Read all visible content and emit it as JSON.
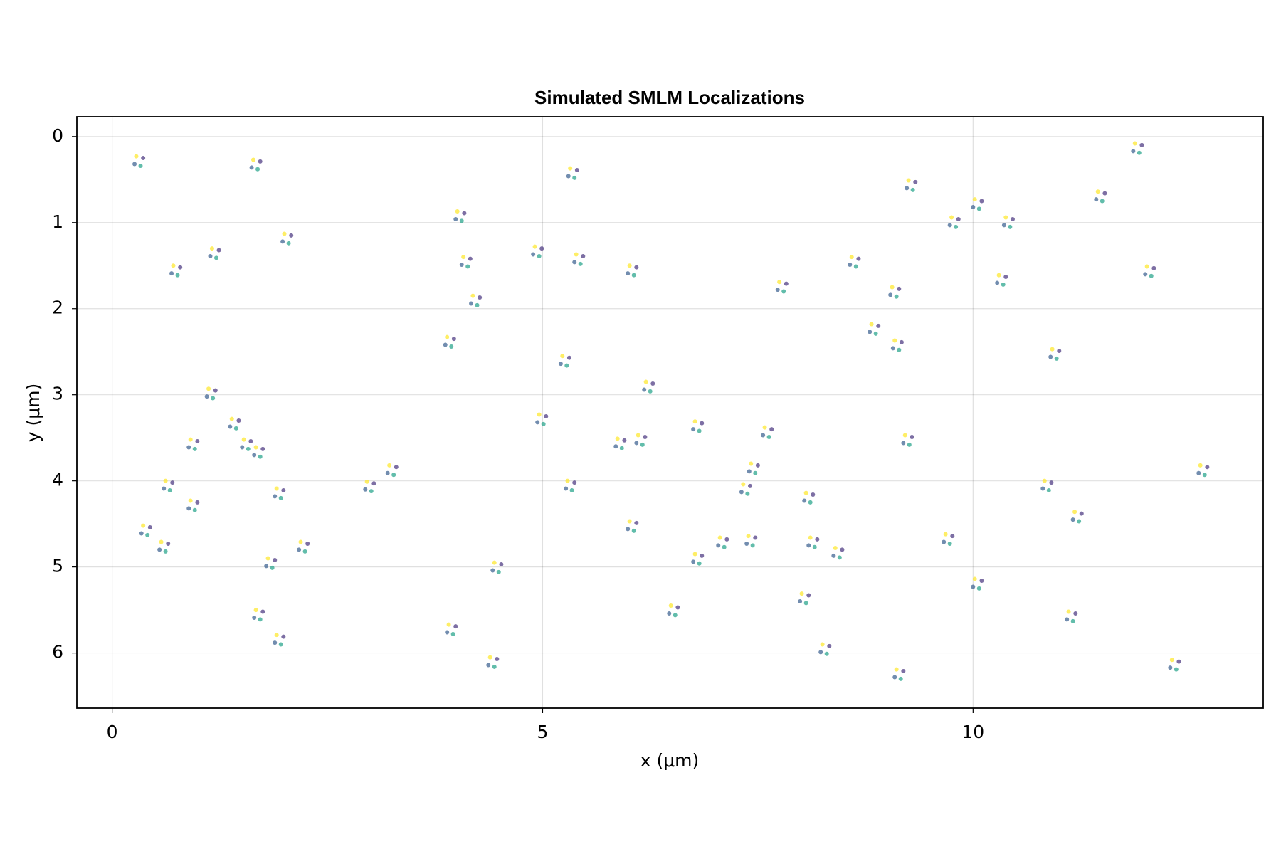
{
  "chart_data": {
    "type": "scatter",
    "title": "Simulated SMLM Localizations",
    "xlabel": "x (μm)",
    "ylabel": "y (μm)",
    "xlim": [
      -0.41,
      13.37
    ],
    "ylim": [
      -0.23,
      6.64
    ],
    "y_inverted": true,
    "xticks": [
      0,
      5,
      10
    ],
    "yticks": [
      0,
      1,
      2,
      3,
      4,
      5,
      6
    ],
    "grid": true,
    "marker_alpha": 0.7,
    "series": [
      {
        "color": "#46327e",
        "x": [
          0.36,
          1.72,
          5.4,
          4.09,
          0.79,
          1.24,
          2.08,
          4.16,
          4.99,
          5.47,
          6.09,
          4.27,
          3.97,
          5.31,
          9.33,
          11.96,
          11.53,
          9.83,
          10.1,
          10.46,
          12.1,
          8.67,
          7.83,
          9.14,
          10.38,
          8.9,
          9.17,
          11.0,
          1.2,
          1.47,
          1.61,
          0.99,
          5.04,
          6.28,
          6.19,
          6.85,
          7.66,
          9.29,
          0.7,
          0.99,
          0.44,
          0.65,
          3.04,
          3.3,
          1.99,
          2.27,
          1.89,
          4.52,
          5.37,
          6.09,
          7.5,
          7.41,
          8.14,
          6.85,
          7.14,
          7.47,
          8.19,
          8.48,
          10.91,
          11.26,
          12.72,
          10.1,
          11.19,
          9.76,
          1.75,
          1.75,
          1.99,
          3.99,
          4.47,
          6.57,
          8.09,
          8.33,
          9.19,
          12.39,
          5.95
        ],
        "values": [
          0.25,
          0.29,
          0.39,
          0.89,
          1.52,
          1.32,
          1.15,
          1.42,
          1.3,
          1.39,
          1.52,
          1.87,
          2.35,
          2.57,
          0.53,
          0.1,
          0.66,
          0.96,
          0.75,
          0.96,
          1.53,
          1.42,
          1.71,
          1.77,
          1.63,
          2.2,
          2.39,
          2.49,
          2.95,
          3.3,
          3.54,
          3.54,
          3.25,
          2.87,
          3.49,
          3.33,
          3.4,
          3.49,
          4.02,
          4.25,
          4.54,
          4.73,
          4.03,
          3.84,
          4.11,
          4.73,
          4.92,
          4.97,
          4.02,
          4.49,
          3.82,
          4.06,
          4.16,
          4.87,
          4.68,
          4.66,
          4.68,
          4.8,
          4.02,
          4.38,
          3.84,
          5.16,
          5.54,
          4.64,
          3.63,
          5.52,
          5.81,
          5.69,
          6.07,
          5.47,
          5.33,
          5.92,
          6.21,
          6.1,
          3.53
        ]
      },
      {
        "color": "#365c8d",
        "x": [
          0.26,
          1.62,
          5.3,
          3.99,
          0.69,
          1.14,
          1.98,
          4.06,
          4.89,
          5.37,
          5.99,
          4.17,
          3.87,
          5.21,
          9.23,
          11.86,
          11.43,
          9.73,
          10.0,
          10.36,
          12.0,
          8.57,
          7.73,
          9.04,
          10.28,
          8.8,
          9.07,
          10.9,
          1.1,
          1.37,
          1.51,
          0.89,
          4.94,
          6.18,
          6.09,
          6.75,
          7.56,
          9.19,
          0.6,
          0.89,
          0.34,
          0.55,
          2.94,
          3.2,
          1.89,
          2.17,
          1.79,
          4.42,
          5.27,
          5.99,
          7.4,
          7.31,
          8.04,
          6.75,
          7.04,
          7.37,
          8.09,
          8.38,
          10.81,
          11.16,
          12.62,
          10.0,
          11.09,
          9.66,
          1.65,
          1.65,
          1.89,
          3.89,
          4.37,
          6.47,
          7.99,
          8.23,
          9.09,
          12.29,
          5.85
        ],
        "values": [
          0.32,
          0.36,
          0.46,
          0.96,
          1.59,
          1.39,
          1.22,
          1.49,
          1.37,
          1.46,
          1.59,
          1.94,
          2.42,
          2.64,
          0.6,
          0.17,
          0.73,
          1.03,
          0.82,
          1.03,
          1.6,
          1.49,
          1.78,
          1.84,
          1.7,
          2.27,
          2.46,
          2.56,
          3.02,
          3.37,
          3.61,
          3.61,
          3.32,
          2.94,
          3.56,
          3.4,
          3.47,
          3.56,
          4.09,
          4.32,
          4.61,
          4.8,
          4.1,
          3.91,
          4.18,
          4.8,
          4.99,
          5.04,
          4.09,
          4.56,
          3.89,
          4.13,
          4.23,
          4.94,
          4.75,
          4.73,
          4.75,
          4.87,
          4.09,
          4.45,
          3.91,
          5.23,
          5.61,
          4.71,
          3.7,
          5.59,
          5.88,
          5.76,
          6.14,
          5.54,
          5.4,
          5.99,
          6.28,
          6.17,
          3.6
        ]
      },
      {
        "color": "#1fa187",
        "x": [
          0.33,
          1.69,
          5.37,
          4.06,
          0.76,
          1.21,
          2.05,
          4.13,
          4.96,
          5.44,
          6.06,
          4.24,
          3.94,
          5.28,
          9.3,
          11.93,
          11.5,
          9.8,
          10.07,
          10.43,
          12.07,
          8.64,
          7.8,
          9.11,
          10.35,
          8.87,
          9.14,
          10.97,
          1.17,
          1.44,
          1.58,
          0.96,
          5.01,
          6.25,
          6.16,
          6.82,
          7.63,
          9.26,
          0.67,
          0.96,
          0.41,
          0.62,
          3.01,
          3.27,
          1.96,
          2.24,
          1.86,
          4.49,
          5.34,
          6.06,
          7.47,
          7.38,
          8.11,
          6.82,
          7.11,
          7.44,
          8.16,
          8.45,
          10.88,
          11.23,
          12.69,
          10.07,
          11.16,
          9.73,
          1.72,
          1.72,
          1.96,
          3.96,
          4.44,
          6.54,
          8.06,
          8.3,
          9.16,
          12.36,
          5.92
        ],
        "values": [
          0.34,
          0.38,
          0.48,
          0.98,
          1.61,
          1.41,
          1.24,
          1.51,
          1.39,
          1.48,
          1.61,
          1.96,
          2.44,
          2.66,
          0.62,
          0.19,
          0.75,
          1.05,
          0.84,
          1.05,
          1.62,
          1.51,
          1.8,
          1.86,
          1.72,
          2.29,
          2.48,
          2.58,
          3.04,
          3.39,
          3.63,
          3.63,
          3.34,
          2.96,
          3.58,
          3.42,
          3.49,
          3.58,
          4.11,
          4.34,
          4.63,
          4.82,
          4.12,
          3.93,
          4.2,
          4.82,
          5.01,
          5.06,
          4.11,
          4.58,
          3.91,
          4.15,
          4.25,
          4.96,
          4.77,
          4.75,
          4.77,
          4.89,
          4.11,
          4.47,
          3.93,
          5.25,
          5.63,
          4.73,
          3.72,
          5.61,
          5.9,
          5.78,
          6.16,
          5.56,
          5.42,
          6.01,
          6.3,
          6.19,
          3.62
        ]
      },
      {
        "color": "#fde725",
        "x": [
          0.28,
          1.64,
          5.32,
          4.01,
          0.71,
          1.16,
          2.0,
          4.08,
          4.91,
          5.39,
          6.01,
          4.19,
          3.89,
          5.23,
          9.25,
          11.88,
          11.45,
          9.75,
          10.02,
          10.38,
          12.02,
          8.59,
          7.75,
          9.06,
          10.3,
          8.82,
          9.09,
          10.92,
          1.12,
          1.39,
          1.53,
          0.91,
          4.96,
          6.2,
          6.11,
          6.77,
          7.58,
          9.21,
          0.62,
          0.91,
          0.36,
          0.57,
          2.96,
          3.22,
          1.91,
          2.19,
          1.81,
          4.44,
          5.29,
          6.01,
          7.42,
          7.33,
          8.06,
          6.77,
          7.06,
          7.39,
          8.11,
          8.4,
          10.83,
          11.18,
          12.64,
          10.02,
          11.11,
          9.68,
          1.67,
          1.67,
          1.91,
          3.91,
          4.39,
          6.49,
          8.01,
          8.25,
          9.11,
          12.31,
          5.87
        ],
        "values": [
          0.23,
          0.27,
          0.37,
          0.87,
          1.5,
          1.3,
          1.13,
          1.4,
          1.28,
          1.37,
          1.5,
          1.85,
          2.33,
          2.55,
          0.51,
          0.08,
          0.64,
          0.94,
          0.73,
          0.94,
          1.51,
          1.4,
          1.69,
          1.75,
          1.61,
          2.18,
          2.37,
          2.47,
          2.93,
          3.28,
          3.52,
          3.52,
          3.23,
          2.85,
          3.47,
          3.31,
          3.38,
          3.47,
          4.0,
          4.23,
          4.52,
          4.71,
          4.01,
          3.82,
          4.09,
          4.71,
          4.9,
          4.95,
          4.0,
          4.47,
          3.8,
          4.04,
          4.14,
          4.85,
          4.66,
          4.64,
          4.66,
          4.78,
          4.0,
          4.36,
          3.82,
          5.14,
          5.52,
          4.62,
          3.61,
          5.5,
          5.79,
          5.67,
          6.05,
          5.45,
          5.31,
          5.9,
          6.19,
          6.08,
          3.51
        ]
      }
    ]
  }
}
